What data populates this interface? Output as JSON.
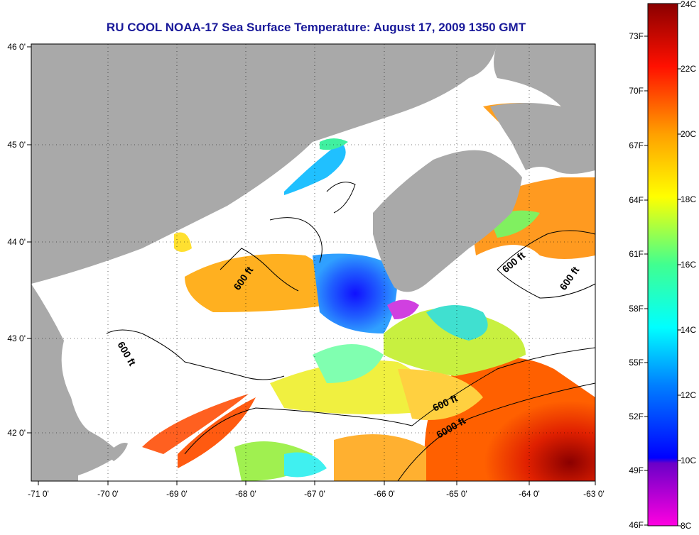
{
  "title": "RU COOL  NOAA-17  Sea Surface Temperature:  August 17, 2009 1350 GMT",
  "map": {
    "lon_ticks": [
      "-71 0'",
      "-70 0'",
      "-69 0'",
      "-68 0'",
      "-67 0'",
      "-66 0'",
      "-65 0'",
      "-64 0'",
      "-63 0'"
    ],
    "lat_ticks": [
      "46 0'",
      "45 0'",
      "44 0'",
      "43 0'",
      "42 0'"
    ],
    "contour_labels": [
      "600 ft",
      "600 ft",
      "600 ft",
      "600 ft",
      "600 ft",
      "6000 ft"
    ],
    "colors": {
      "land": "#a9a9a9",
      "cloud": "#ffffff",
      "frame": "#000000"
    }
  },
  "colorbar": {
    "celsius_labels": [
      "24C",
      "22C",
      "20C",
      "18C",
      "16C",
      "14C",
      "12C",
      "10C",
      "8C"
    ],
    "fahrenheit_labels": [
      "73F",
      "70F",
      "67F",
      "64F",
      "61F",
      "58F",
      "55F",
      "52F",
      "49F",
      "46F"
    ],
    "range_c": [
      8,
      24
    ]
  }
}
